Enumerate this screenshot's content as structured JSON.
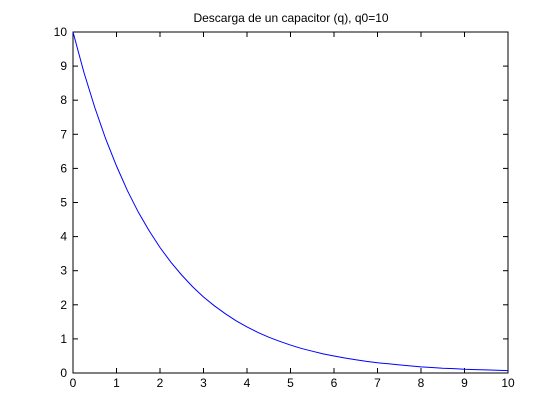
{
  "chart_data": {
    "type": "line",
    "title": "Descarga de un capacitor (q), q0=10",
    "xlabel": "",
    "ylabel": "",
    "xlim": [
      0,
      10
    ],
    "ylim": [
      0,
      10
    ],
    "xticks": [
      0,
      1,
      2,
      3,
      4,
      5,
      6,
      7,
      8,
      9,
      10
    ],
    "yticks": [
      0,
      1,
      2,
      3,
      4,
      5,
      6,
      7,
      8,
      9,
      10
    ],
    "grid": false,
    "legend": "none",
    "series": [
      {
        "color": "#0000ff",
        "x": [
          0,
          0.25,
          0.5,
          0.75,
          1,
          1.25,
          1.5,
          1.75,
          2,
          2.25,
          2.5,
          2.75,
          3,
          3.25,
          3.5,
          3.75,
          4,
          4.25,
          4.5,
          4.75,
          5,
          5.25,
          5.5,
          5.75,
          6,
          6.25,
          6.5,
          6.75,
          7,
          7.25,
          7.5,
          7.75,
          8,
          8.25,
          8.5,
          8.75,
          9,
          9.25,
          9.5,
          9.75,
          10
        ],
        "y": [
          10,
          8.82,
          7.79,
          6.87,
          6.07,
          5.35,
          4.72,
          4.17,
          3.68,
          3.25,
          2.87,
          2.53,
          2.23,
          1.97,
          1.74,
          1.53,
          1.35,
          1.19,
          1.05,
          0.93,
          0.82,
          0.72,
          0.64,
          0.56,
          0.5,
          0.44,
          0.39,
          0.34,
          0.3,
          0.27,
          0.24,
          0.21,
          0.18,
          0.16,
          0.14,
          0.13,
          0.11,
          0.1,
          0.09,
          0.08,
          0.07
        ]
      }
    ]
  }
}
